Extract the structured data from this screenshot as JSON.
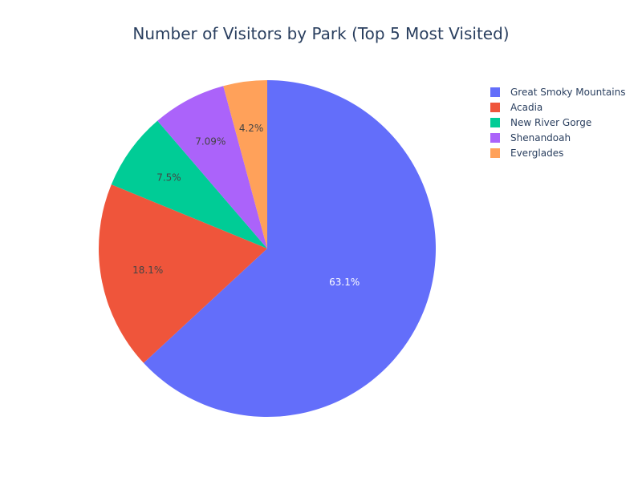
{
  "chart_data": {
    "type": "pie",
    "title": "Number of Visitors by Park (Top 5 Most Visited)",
    "categories": [
      "Great Smoky Mountains",
      "Acadia",
      "New River Gorge",
      "Shenandoah",
      "Everglades"
    ],
    "values": [
      63.1,
      18.1,
      7.5,
      7.09,
      4.2
    ],
    "value_labels": [
      "63.1%",
      "18.1%",
      "7.5%",
      "7.09%",
      "4.2%"
    ],
    "colors": [
      "#636efa",
      "#EF553B",
      "#00cc96",
      "#ab63fa",
      "#FFA15A"
    ],
    "label_colors": [
      "#ffffff",
      "#444444",
      "#444444",
      "#444444",
      "#444444"
    ],
    "direction": "clockwise",
    "start_angle_deg": 90,
    "legend_position": "top-right"
  }
}
